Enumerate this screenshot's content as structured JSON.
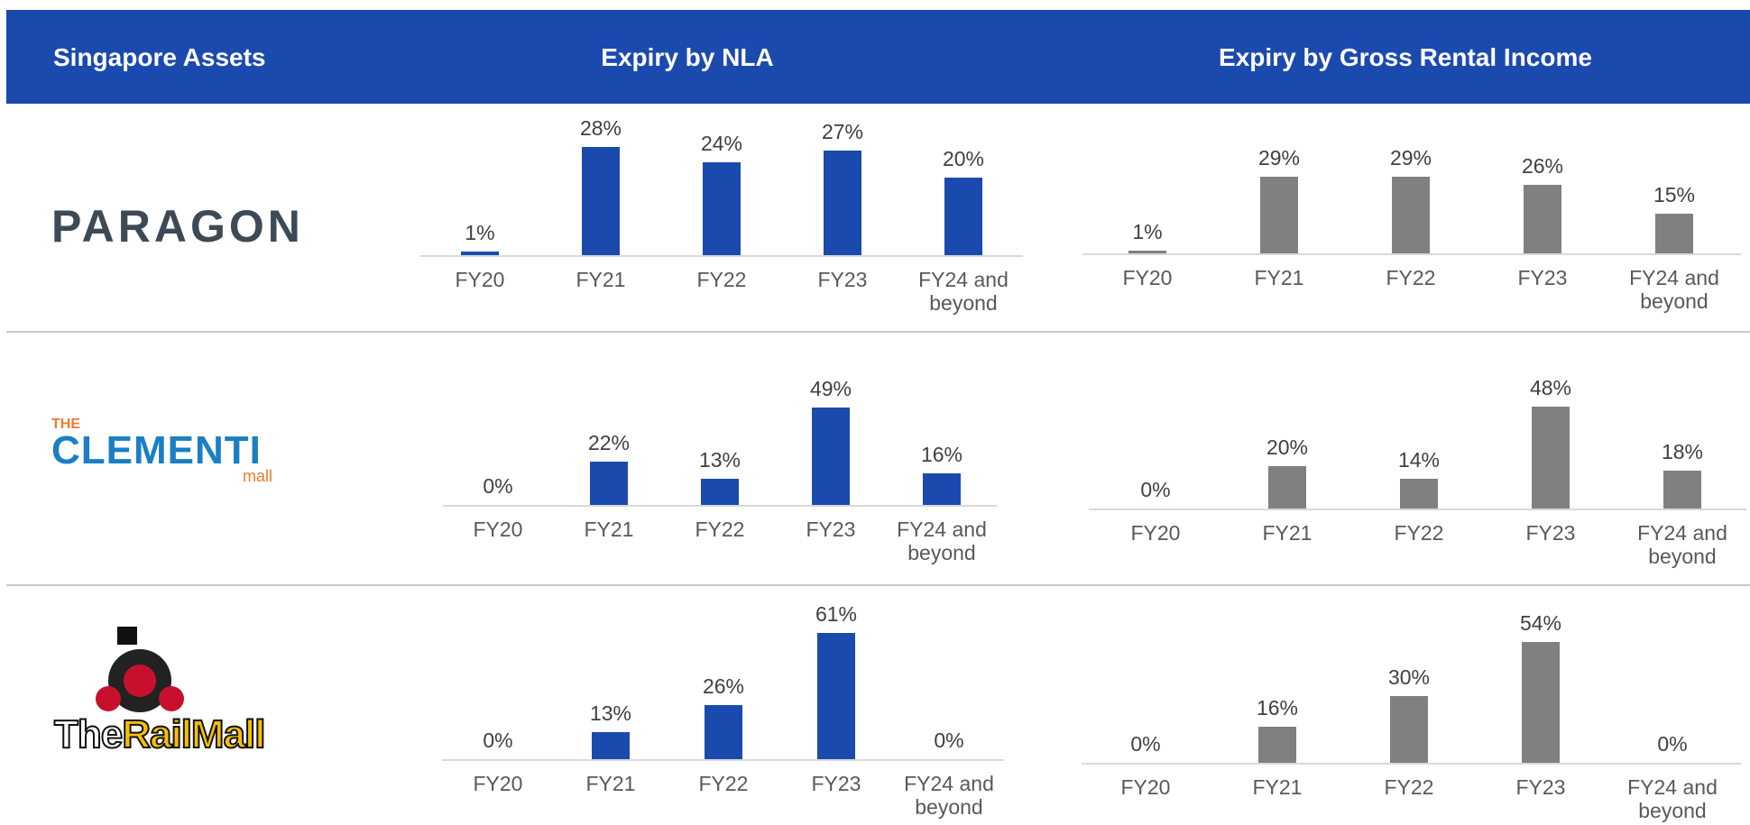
{
  "header": {
    "assets": "Singapore Assets",
    "nla": "Expiry by NLA",
    "gri": "Expiry by Gross Rental Income"
  },
  "assets": [
    {
      "name": "PARAGON"
    },
    {
      "pre": "THE",
      "name": "CLEMENTI",
      "post": "mall"
    },
    {
      "pre": "The",
      "name": "RailMall"
    }
  ],
  "chart_data": [
    {
      "type": "bar",
      "categories": [
        "FY20",
        "FY21",
        "FY22",
        "FY23",
        "FY24 and beyond"
      ],
      "values": [
        1,
        28,
        24,
        27,
        20
      ],
      "value_labels": [
        "1%",
        "28%",
        "24%",
        "27%",
        "20%"
      ],
      "color": "#1b4aaf"
    },
    {
      "type": "bar",
      "categories": [
        "FY20",
        "FY21",
        "FY22",
        "FY23",
        "FY24 and beyond"
      ],
      "values": [
        1,
        29,
        29,
        26,
        15
      ],
      "value_labels": [
        "1%",
        "29%",
        "29%",
        "26%",
        "15%"
      ],
      "color": "#808080"
    },
    {
      "type": "bar",
      "categories": [
        "FY20",
        "FY21",
        "FY22",
        "FY23",
        "FY24 and beyond"
      ],
      "values": [
        0,
        22,
        13,
        49,
        16
      ],
      "value_labels": [
        "0%",
        "22%",
        "13%",
        "49%",
        "16%"
      ],
      "color": "#1b4aaf"
    },
    {
      "type": "bar",
      "categories": [
        "FY20",
        "FY21",
        "FY22",
        "FY23",
        "FY24 and beyond"
      ],
      "values": [
        0,
        20,
        14,
        48,
        18
      ],
      "value_labels": [
        "0%",
        "20%",
        "14%",
        "48%",
        "18%"
      ],
      "color": "#808080"
    },
    {
      "type": "bar",
      "categories": [
        "FY20",
        "FY21",
        "FY22",
        "FY23",
        "FY24 and beyond"
      ],
      "values": [
        0,
        13,
        26,
        61,
        0
      ],
      "value_labels": [
        "0%",
        "13%",
        "26%",
        "61%",
        "0%"
      ],
      "color": "#1b4aaf"
    },
    {
      "type": "bar",
      "categories": [
        "FY20",
        "FY21",
        "FY22",
        "FY23",
        "FY24 and beyond"
      ],
      "values": [
        0,
        16,
        30,
        54,
        0
      ],
      "value_labels": [
        "0%",
        "16%",
        "30%",
        "54%",
        "0%"
      ],
      "color": "#808080"
    }
  ]
}
